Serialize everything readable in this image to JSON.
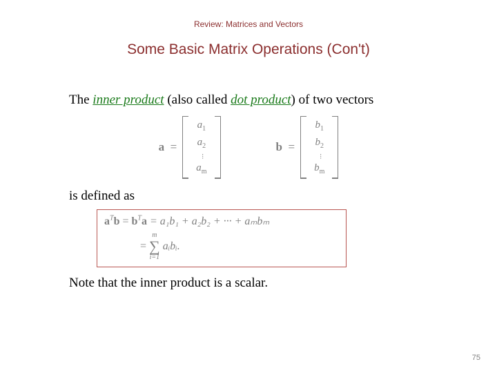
{
  "header": {
    "text": "Review: Matrices and Vectors",
    "color": "#8b2e2e",
    "fontsize": 12
  },
  "title": {
    "text": "Some Basic Matrix Operations (Con't)",
    "color": "#8b2e2e",
    "fontsize": 21
  },
  "para1": {
    "pre": "The ",
    "term1": "inner product",
    "mid": " (also called ",
    "term2": "dot product",
    "post": ") of two vectors",
    "term1_color": "#1a7a1a",
    "term2_color": "#1a7a1a"
  },
  "vectors": {
    "color": "#808080",
    "fontsize": 15,
    "a": {
      "label": "a",
      "entries": [
        "a1",
        "a2",
        "⋮",
        "am"
      ]
    },
    "b": {
      "label": "b",
      "entries": [
        "b1",
        "b2",
        "⋮",
        "bm"
      ]
    }
  },
  "para2": {
    "text": "is defined as"
  },
  "formula": {
    "border_color": "#b85450",
    "color": "#808080",
    "line1": {
      "lhs_a": "a",
      "lhs_a_sup": "T",
      "lhs_b": "b",
      "eq": " = ",
      "mid_b": "b",
      "mid_b_sup": "T",
      "mid_a": "a",
      "rhs": " = a₁b₁ + a₂b₂ + ··· + aₘbₘ"
    },
    "line2": {
      "eq": "= ",
      "sum_top": "m",
      "sum_bot": "i=1",
      "body": "aᵢbᵢ.",
      "sigma": "∑"
    }
  },
  "para3": {
    "text": "Note that the inner product is a scalar."
  },
  "page_number": "75"
}
